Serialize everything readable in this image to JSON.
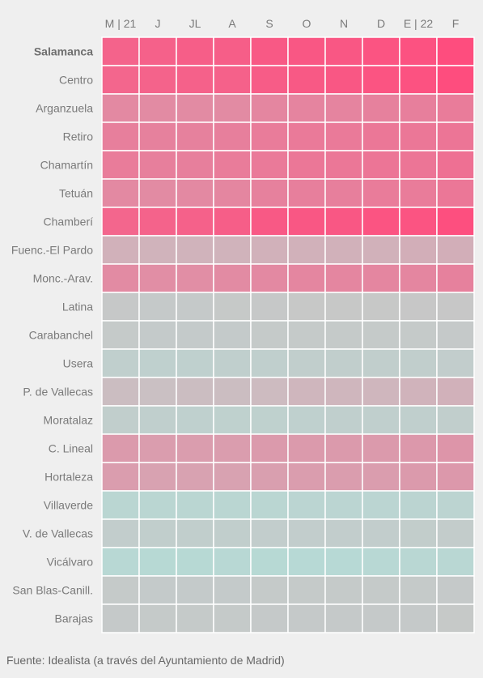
{
  "chart_data": {
    "type": "heatmap",
    "columns": [
      "M | 21",
      "J",
      "JL",
      "A",
      "S",
      "O",
      "N",
      "D",
      "E | 22",
      "F"
    ],
    "rows": [
      "Salamanca",
      "Centro",
      "Arganzuela",
      "Retiro",
      "Chamartín",
      "Tetuán",
      "Chamberí",
      "Fuenc.-El Pardo",
      "Monc.-Arav.",
      "Latina",
      "Carabanchel",
      "Usera",
      "P. de Vallecas",
      "Moratalaz",
      "C. Lineal",
      "Hortaleza",
      "Villaverde",
      "V. de Vallecas",
      "Vicálvaro",
      "San Blas-Canill.",
      "Barajas"
    ],
    "highlighted_row": "Salamanca",
    "color_scale": {
      "low": "#aee3dc",
      "mid": "#c7c7c7",
      "high": "#ff4a7c"
    },
    "values": [
      [
        0.8,
        0.82,
        0.84,
        0.84,
        0.88,
        0.9,
        0.9,
        0.92,
        0.94,
        0.98
      ],
      [
        0.78,
        0.8,
        0.82,
        0.82,
        0.86,
        0.88,
        0.9,
        0.92,
        0.94,
        0.98
      ],
      [
        0.5,
        0.48,
        0.48,
        0.48,
        0.52,
        0.54,
        0.54,
        0.56,
        0.58,
        0.6
      ],
      [
        0.58,
        0.56,
        0.56,
        0.58,
        0.6,
        0.62,
        0.62,
        0.64,
        0.64,
        0.66
      ],
      [
        0.6,
        0.58,
        0.58,
        0.6,
        0.62,
        0.64,
        0.64,
        0.66,
        0.66,
        0.7
      ],
      [
        0.5,
        0.48,
        0.5,
        0.52,
        0.56,
        0.58,
        0.58,
        0.6,
        0.6,
        0.64
      ],
      [
        0.78,
        0.8,
        0.82,
        0.84,
        0.88,
        0.9,
        0.9,
        0.92,
        0.92,
        0.96
      ],
      [
        0.18,
        0.16,
        0.16,
        0.16,
        0.18,
        0.18,
        0.18,
        0.18,
        0.2,
        0.2
      ],
      [
        0.48,
        0.46,
        0.46,
        0.48,
        0.5,
        0.52,
        0.52,
        0.52,
        0.52,
        0.56
      ],
      [
        -0.04,
        -0.08,
        -0.08,
        -0.06,
        -0.04,
        -0.02,
        -0.02,
        -0.02,
        0.0,
        0.0
      ],
      [
        -0.1,
        -0.12,
        -0.12,
        -0.12,
        -0.1,
        -0.1,
        -0.1,
        -0.1,
        -0.1,
        -0.08
      ],
      [
        -0.3,
        -0.32,
        -0.32,
        -0.3,
        -0.28,
        -0.26,
        -0.26,
        -0.26,
        -0.24,
        -0.22
      ],
      [
        0.08,
        0.06,
        0.08,
        0.08,
        0.1,
        0.14,
        0.14,
        0.14,
        0.16,
        0.18
      ],
      [
        -0.24,
        -0.3,
        -0.32,
        -0.34,
        -0.34,
        -0.32,
        -0.3,
        -0.3,
        -0.28,
        -0.26
      ],
      [
        0.36,
        0.34,
        0.34,
        0.34,
        0.36,
        0.36,
        0.36,
        0.36,
        0.38,
        0.4
      ],
      [
        0.34,
        0.3,
        0.3,
        0.3,
        0.32,
        0.34,
        0.34,
        0.34,
        0.36,
        0.38
      ],
      [
        -0.52,
        -0.54,
        -0.54,
        -0.54,
        -0.52,
        -0.5,
        -0.5,
        -0.5,
        -0.48,
        -0.46
      ],
      [
        -0.22,
        -0.24,
        -0.24,
        -0.24,
        -0.22,
        -0.22,
        -0.22,
        -0.22,
        -0.2,
        -0.18
      ],
      [
        -0.62,
        -0.64,
        -0.64,
        -0.62,
        -0.64,
        -0.66,
        -0.66,
        -0.62,
        -0.58,
        -0.56
      ],
      [
        -0.1,
        -0.12,
        -0.12,
        -0.12,
        -0.1,
        -0.1,
        -0.1,
        -0.1,
        -0.1,
        -0.08
      ],
      [
        -0.08,
        -0.1,
        -0.1,
        -0.1,
        -0.08,
        -0.08,
        -0.08,
        -0.08,
        -0.08,
        -0.06
      ]
    ],
    "legend": "none",
    "grid": true
  },
  "source_text": "Fuente: Idealista (a través del Ayuntamiento de Madrid)"
}
